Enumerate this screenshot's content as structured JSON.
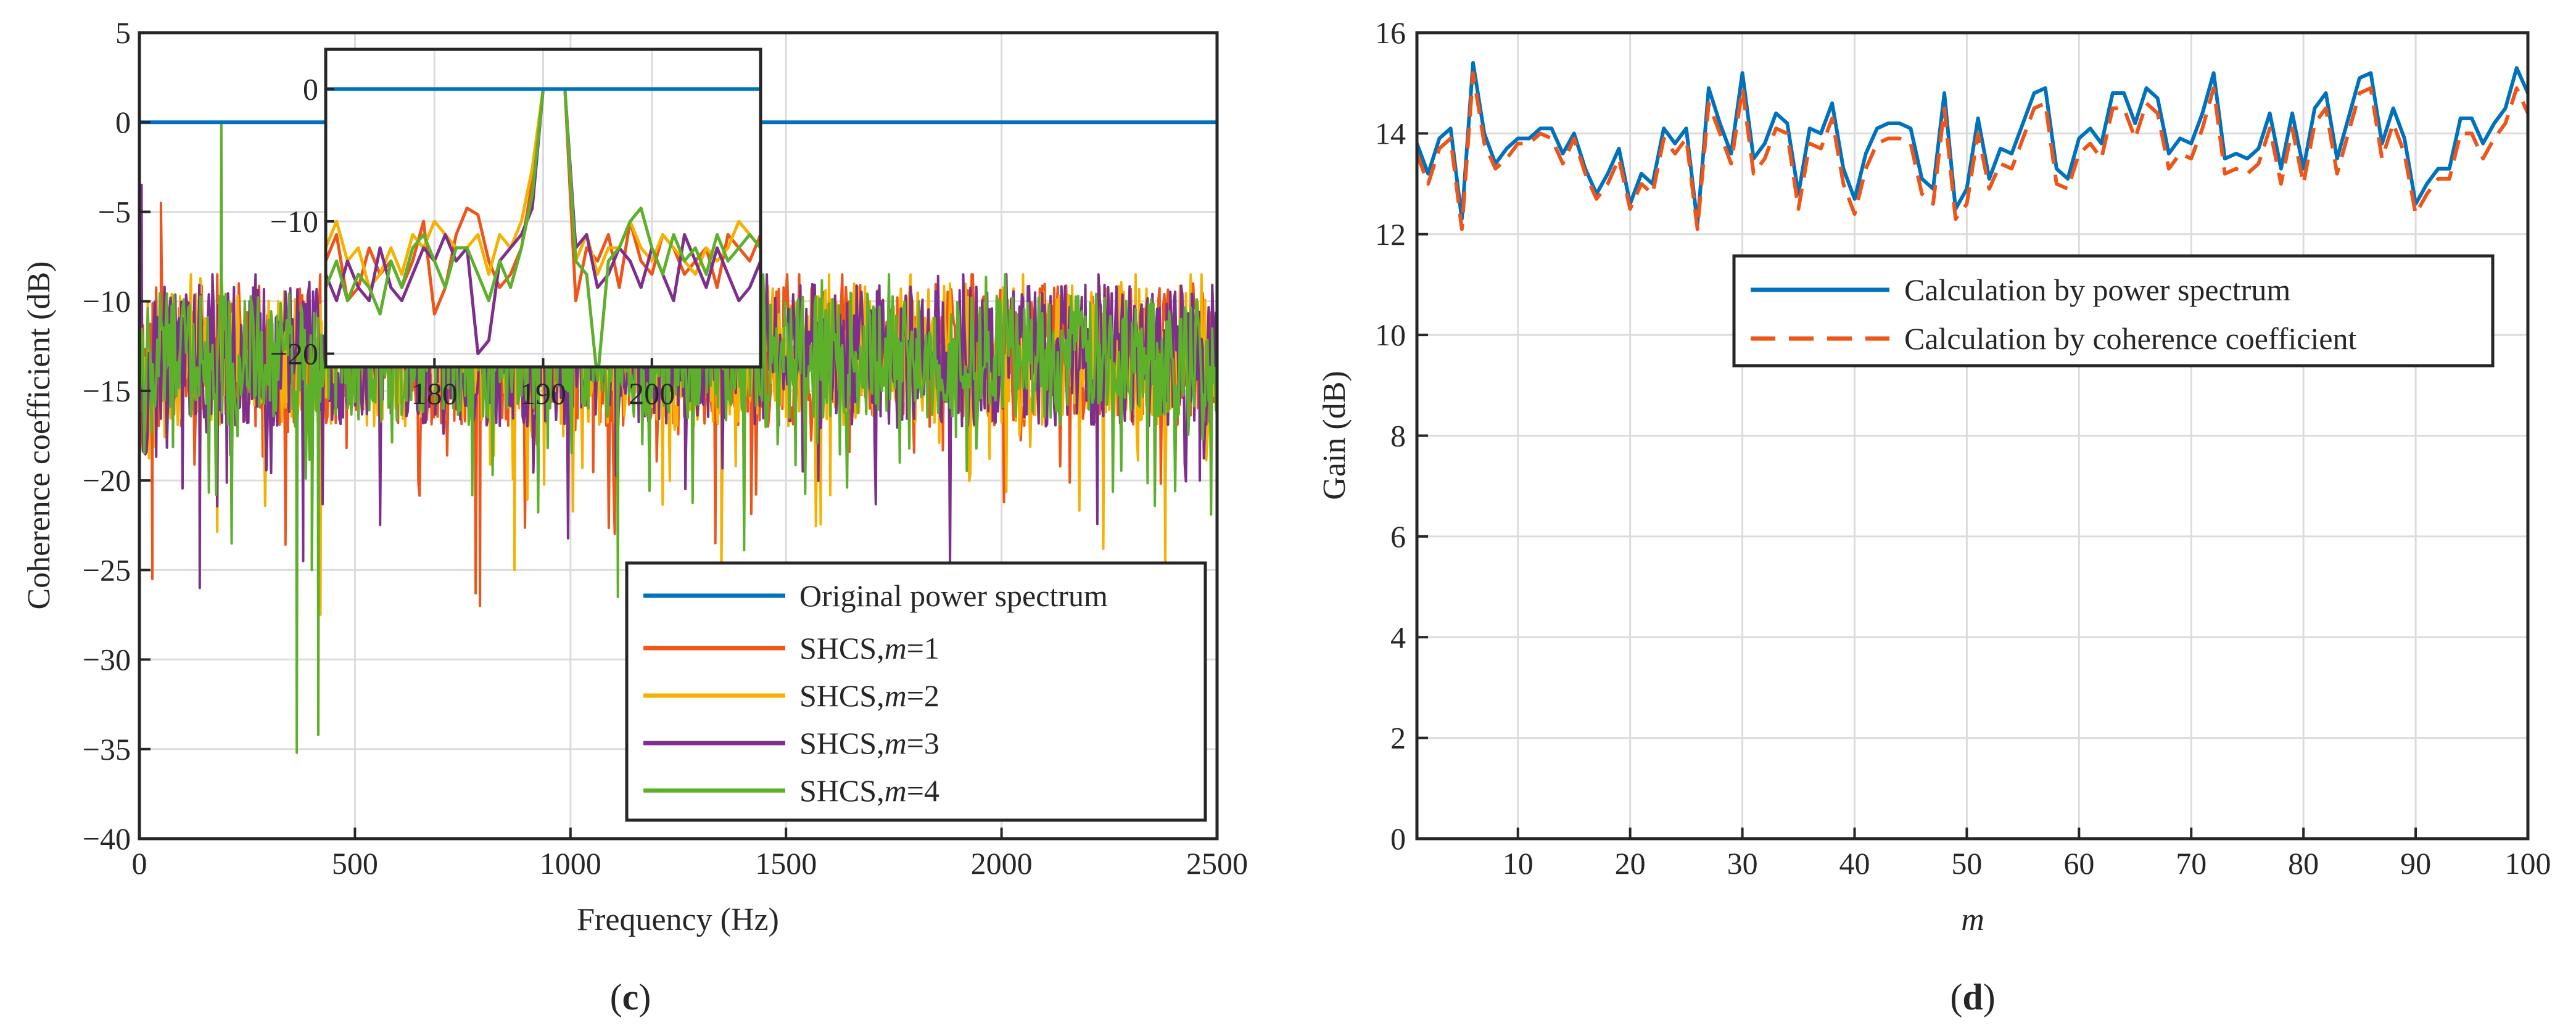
{
  "colors": {
    "blue": "#0072BD",
    "orange": "#ED5519",
    "yellow": "#F5B000",
    "purple": "#7E2F8E",
    "green": "#5DB02A"
  },
  "chart_data": [
    {
      "panel": "c",
      "caption": "c",
      "type": "line",
      "title": "",
      "xlabel": "Frequency (Hz)",
      "ylabel": "Coherence coefficient (dB)",
      "xlim": [
        0,
        2500
      ],
      "ylim": [
        -40,
        5
      ],
      "xticks": [
        "0",
        "500",
        "1000",
        "1500",
        "2000",
        "2500"
      ],
      "yticks": [
        "5",
        "0",
        "−5",
        "−10",
        "−15",
        "−20",
        "−25",
        "−30",
        "−35",
        "−40"
      ],
      "legend_position": "bottom-right",
      "series": [
        {
          "name": "Original power spectrum",
          "color": "blue",
          "style": "solid",
          "value": 0
        },
        {
          "name": "SHCS,",
          "name_italic": "m",
          "name_suffix": "=1",
          "color": "orange",
          "style": "noisy",
          "mean": -13,
          "spread": 4,
          "spikes": [
            [
              30,
              -25.5
            ],
            [
              50,
              -4.5
            ],
            [
              140,
              -22
            ],
            [
              780,
              -26.3
            ],
            [
              790,
              -27
            ]
          ]
        },
        {
          "name": "SHCS,",
          "name_italic": "m",
          "name_suffix": "=2",
          "color": "yellow",
          "style": "noisy",
          "mean": -13,
          "spread": 4,
          "spikes": [
            [
              420,
              -27.5
            ],
            [
              870,
              -25
            ],
            [
              1350,
              -25.5
            ],
            [
              2380,
              -25.2
            ]
          ]
        },
        {
          "name": "SHCS,",
          "name_italic": "m",
          "name_suffix": "=3",
          "color": "purple",
          "style": "noisy",
          "mean": -13,
          "spread": 4,
          "spikes": [
            [
              5,
              -3.5
            ],
            [
              140,
              -26
            ],
            [
              380,
              -24.5
            ],
            [
              2460,
              -20
            ]
          ]
        },
        {
          "name": "SHCS,",
          "name_italic": "m",
          "name_suffix": "=4",
          "color": "green",
          "style": "noisy",
          "mean": -13,
          "spread": 3.5,
          "spikes": [
            [
              190,
              0
            ],
            [
              365,
              -35.2
            ],
            [
              415,
              -34.2
            ],
            [
              400,
              -25
            ],
            [
              1110,
              -26.5
            ]
          ]
        }
      ],
      "inset": {
        "xlim": [
          170,
          210
        ],
        "ylim": [
          -21,
          3
        ],
        "xticks": [
          "180",
          "190",
          "200"
        ],
        "yticks": [
          "0",
          "−10",
          "−20"
        ],
        "series": [
          {
            "color": "blue",
            "x": [
              170,
              210
            ],
            "y": [
              0,
              0
            ]
          },
          {
            "color": "orange",
            "x": [
              170,
              171,
              172,
              173,
              174,
              175,
              176,
              177,
              178,
              179,
              180,
              181,
              182,
              183,
              184,
              185,
              186,
              187,
              188,
              189,
              190,
              191,
              192,
              193,
              194,
              195,
              196,
              197,
              198,
              199,
              200,
              201,
              202,
              203,
              204,
              205,
              206,
              207,
              208,
              209,
              210
            ],
            "y": [
              -13,
              -11,
              -16,
              -15,
              -12,
              -14,
              -13,
              -15,
              -13,
              -10,
              -17,
              -15,
              -11,
              -9,
              -9.5,
              -13,
              -15,
              -14,
              -12,
              -7,
              0,
              0,
              0,
              -16,
              -12,
              -13,
              -11,
              -15,
              -10,
              -13,
              -14,
              -11,
              -12,
              -14,
              -13,
              -12,
              -15,
              -11,
              -12,
              -13,
              -11
            ]
          },
          {
            "color": "yellow",
            "x": [
              170,
              171,
              172,
              173,
              174,
              175,
              176,
              177,
              178,
              179,
              180,
              181,
              182,
              183,
              184,
              185,
              186,
              187,
              188,
              189,
              190,
              191,
              192,
              193,
              194,
              195,
              196,
              197,
              198,
              199,
              200,
              201,
              202,
              203,
              204,
              205,
              206,
              207,
              208,
              209,
              210
            ],
            "y": [
              -12,
              -10,
              -13,
              -12,
              -15,
              -14,
              -12,
              -14,
              -11,
              -12,
              -10,
              -11,
              -12,
              -12,
              -11,
              -14,
              -11,
              -12,
              -10,
              -6,
              0,
              0,
              0,
              -13,
              -11,
              -14,
              -12,
              -12,
              -10,
              -12,
              -13,
              -11,
              -12,
              -13,
              -14,
              -12,
              -13,
              -12,
              -10,
              -11,
              -12
            ]
          },
          {
            "color": "purple",
            "x": [
              170,
              171,
              172,
              173,
              174,
              175,
              176,
              177,
              178,
              179,
              180,
              181,
              182,
              183,
              184,
              185,
              186,
              187,
              188,
              189,
              190,
              191,
              192,
              193,
              194,
              195,
              196,
              197,
              198,
              199,
              200,
              201,
              202,
              203,
              204,
              205,
              206,
              207,
              208,
              209,
              210
            ],
            "y": [
              -14,
              -16,
              -13,
              -15,
              -16,
              -12,
              -15,
              -16,
              -14,
              -12,
              -13,
              -11,
              -13,
              -12,
              -20,
              -19,
              -13,
              -12,
              -11,
              -9,
              0,
              0,
              0,
              -12,
              -11,
              -15,
              -14,
              -12,
              -13,
              -15,
              -12,
              -14,
              -16,
              -11,
              -13,
              -15,
              -12,
              -14,
              -16,
              -15,
              -13
            ]
          },
          {
            "color": "green",
            "x": [
              170,
              171,
              172,
              173,
              174,
              175,
              176,
              177,
              178,
              179,
              180,
              181,
              182,
              183,
              184,
              185,
              186,
              187,
              188,
              189,
              190,
              191,
              192,
              193,
              194,
              195,
              196,
              197,
              198,
              199,
              200,
              201,
              202,
              203,
              204,
              205,
              206,
              207,
              208,
              209,
              210
            ],
            "y": [
              -15,
              -13,
              -16,
              -14,
              -15,
              -17,
              -13,
              -15,
              -12,
              -11,
              -13,
              -15,
              -12,
              -12,
              -14,
              -16,
              -13,
              -15,
              -12,
              -8,
              0,
              0,
              0,
              -13,
              -14,
              -22,
              -13,
              -12,
              -10,
              -9,
              -12,
              -14,
              -11,
              -13,
              -12,
              -14,
              -11,
              -13,
              -12,
              -11,
              -12
            ]
          }
        ]
      }
    },
    {
      "panel": "d",
      "caption": "d",
      "type": "line",
      "title": "",
      "xlabel": "m",
      "ylabel": "Gain (dB)",
      "xlim": [
        1,
        100
      ],
      "ylim": [
        0,
        16
      ],
      "xticks": [
        "10",
        "20",
        "30",
        "40",
        "50",
        "60",
        "70",
        "80",
        "90",
        "100"
      ],
      "yticks": [
        "0",
        "2",
        "4",
        "6",
        "8",
        "10",
        "12",
        "14",
        "16"
      ],
      "legend_position": "top-right",
      "series": [
        {
          "name": "Calculation by power spectrum",
          "color": "blue",
          "style": "solid",
          "x": [
            1,
            2,
            3,
            4,
            5,
            6,
            7,
            8,
            9,
            10,
            11,
            12,
            13,
            14,
            15,
            16,
            17,
            18,
            19,
            20,
            21,
            22,
            23,
            24,
            25,
            26,
            27,
            28,
            29,
            30,
            31,
            32,
            33,
            34,
            35,
            36,
            37,
            38,
            39,
            40,
            41,
            42,
            43,
            44,
            45,
            46,
            47,
            48,
            49,
            50,
            51,
            52,
            53,
            54,
            55,
            56,
            57,
            58,
            59,
            60,
            61,
            62,
            63,
            64,
            65,
            66,
            67,
            68,
            69,
            70,
            71,
            72,
            73,
            74,
            75,
            76,
            77,
            78,
            79,
            80,
            81,
            82,
            83,
            84,
            85,
            86,
            87,
            88,
            89,
            90,
            91,
            92,
            93,
            94,
            95,
            96,
            97,
            98,
            99,
            100
          ],
          "y": [
            13.8,
            13.2,
            13.9,
            14.1,
            12.3,
            15.4,
            14.0,
            13.4,
            13.7,
            13.9,
            13.9,
            14.1,
            14.1,
            13.6,
            14.0,
            13.3,
            12.8,
            13.2,
            13.7,
            12.6,
            13.2,
            13.0,
            14.1,
            13.8,
            14.1,
            12.2,
            14.9,
            14.2,
            13.6,
            15.2,
            13.5,
            13.8,
            14.4,
            14.2,
            12.8,
            14.1,
            14.0,
            14.6,
            13.3,
            12.7,
            13.6,
            14.1,
            14.2,
            14.2,
            14.1,
            13.1,
            12.9,
            14.8,
            12.5,
            12.9,
            14.3,
            13.1,
            13.7,
            13.6,
            14.2,
            14.8,
            14.9,
            13.3,
            13.1,
            13.9,
            14.1,
            13.8,
            14.8,
            14.8,
            14.2,
            14.9,
            14.7,
            13.6,
            13.9,
            13.8,
            14.4,
            15.2,
            13.5,
            13.6,
            13.5,
            13.7,
            14.4,
            13.3,
            14.4,
            13.3,
            14.5,
            14.8,
            13.5,
            14.3,
            15.1,
            15.2,
            13.8,
            14.5,
            13.9,
            12.6,
            13.0,
            13.3,
            13.3,
            14.3,
            14.3,
            13.8,
            14.2,
            14.5,
            15.3,
            14.8
          ]
        },
        {
          "name": "Calculation by coherence coefficient",
          "color": "orange",
          "style": "dashed",
          "x": [
            1,
            2,
            3,
            4,
            5,
            6,
            7,
            8,
            9,
            10,
            11,
            12,
            13,
            14,
            15,
            16,
            17,
            18,
            19,
            20,
            21,
            22,
            23,
            24,
            25,
            26,
            27,
            28,
            29,
            30,
            31,
            32,
            33,
            34,
            35,
            36,
            37,
            38,
            39,
            40,
            41,
            42,
            43,
            44,
            45,
            46,
            47,
            48,
            49,
            50,
            51,
            52,
            53,
            54,
            55,
            56,
            57,
            58,
            59,
            60,
            61,
            62,
            63,
            64,
            65,
            66,
            67,
            68,
            69,
            70,
            71,
            72,
            73,
            74,
            75,
            76,
            77,
            78,
            79,
            80,
            81,
            82,
            83,
            84,
            85,
            86,
            87,
            88,
            89,
            90,
            91,
            92,
            93,
            94,
            95,
            96,
            97,
            98,
            99,
            100
          ],
          "y": [
            13.6,
            13.0,
            13.7,
            13.9,
            12.1,
            15.2,
            13.8,
            13.3,
            13.5,
            13.8,
            13.8,
            14.0,
            13.9,
            13.4,
            13.9,
            13.2,
            12.7,
            13.0,
            13.5,
            12.5,
            13.0,
            12.8,
            13.9,
            13.6,
            13.9,
            12.1,
            14.6,
            14.0,
            13.4,
            14.9,
            13.2,
            13.5,
            14.1,
            14.0,
            12.5,
            13.8,
            13.7,
            14.3,
            13.0,
            12.4,
            13.3,
            13.8,
            13.9,
            13.9,
            13.8,
            12.8,
            12.6,
            14.5,
            12.3,
            12.6,
            14.0,
            12.9,
            13.4,
            13.3,
            13.9,
            14.5,
            14.6,
            13.0,
            12.9,
            13.6,
            13.8,
            13.5,
            14.5,
            14.5,
            13.9,
            14.6,
            14.4,
            13.3,
            13.6,
            13.5,
            14.1,
            14.9,
            13.2,
            13.3,
            13.2,
            13.4,
            14.1,
            13.0,
            14.1,
            13.0,
            14.2,
            14.5,
            13.2,
            14.0,
            14.8,
            14.9,
            13.5,
            14.2,
            13.6,
            12.4,
            12.8,
            13.1,
            13.1,
            14.0,
            14.0,
            13.5,
            13.9,
            14.2,
            14.9,
            14.4
          ]
        }
      ]
    }
  ]
}
